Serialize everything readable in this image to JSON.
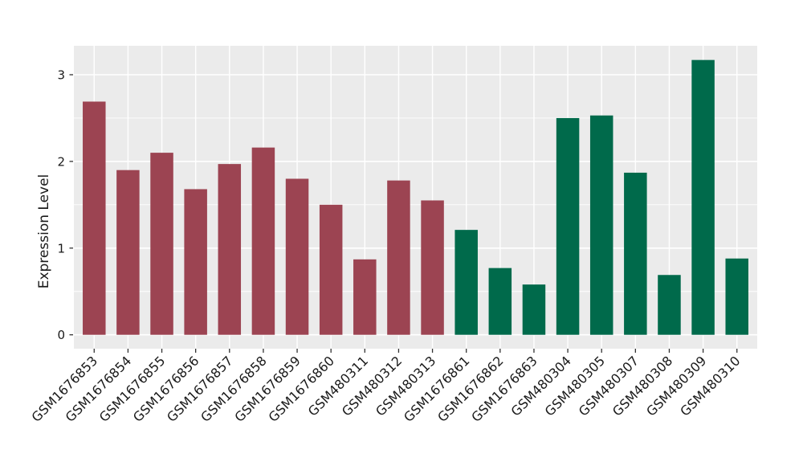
{
  "figure": {
    "background": "#FFFFFF"
  },
  "chart_data": {
    "type": "bar",
    "title": "",
    "xlabel": "",
    "ylabel": "Expression Level",
    "categories": [
      "GSM1676853",
      "GSM1676854",
      "GSM1676855",
      "GSM1676856",
      "GSM1676857",
      "GSM1676858",
      "GSM1676859",
      "GSM1676860",
      "GSM480311",
      "GSM480312",
      "GSM480313",
      "GSM1676861",
      "GSM1676862",
      "GSM1676863",
      "GSM480304",
      "GSM480305",
      "GSM480307",
      "GSM480308",
      "GSM480309",
      "GSM480310"
    ],
    "values": [
      2.69,
      1.9,
      2.1,
      1.68,
      1.97,
      2.16,
      1.8,
      1.5,
      0.87,
      1.78,
      1.55,
      1.21,
      0.77,
      0.58,
      2.5,
      2.53,
      1.87,
      0.69,
      3.17,
      0.88
    ],
    "groups": [
      "group1",
      "group1",
      "group1",
      "group1",
      "group1",
      "group1",
      "group1",
      "group1",
      "group1",
      "group1",
      "group1",
      "group2",
      "group2",
      "group2",
      "group2",
      "group2",
      "group2",
      "group2",
      "group2",
      "group2"
    ],
    "group_colors": {
      "group1": "#9C4452",
      "group2": "#006A4B"
    },
    "y_tick_labels": [
      "0",
      "1",
      "2",
      "3"
    ],
    "y_tick_values": [
      0,
      1,
      2,
      3
    ],
    "y_minor_values": [
      0.5,
      1.5,
      2.5
    ],
    "ylim": [
      -0.13,
      3.33
    ],
    "x_label_angle_deg": 45,
    "legend_position": "none",
    "grid": "on",
    "panel_background": "#EBEBEB",
    "grid_color": "#FFFFFF",
    "axis_text_color": "#1A1A1A",
    "tick_color": "#333333"
  }
}
